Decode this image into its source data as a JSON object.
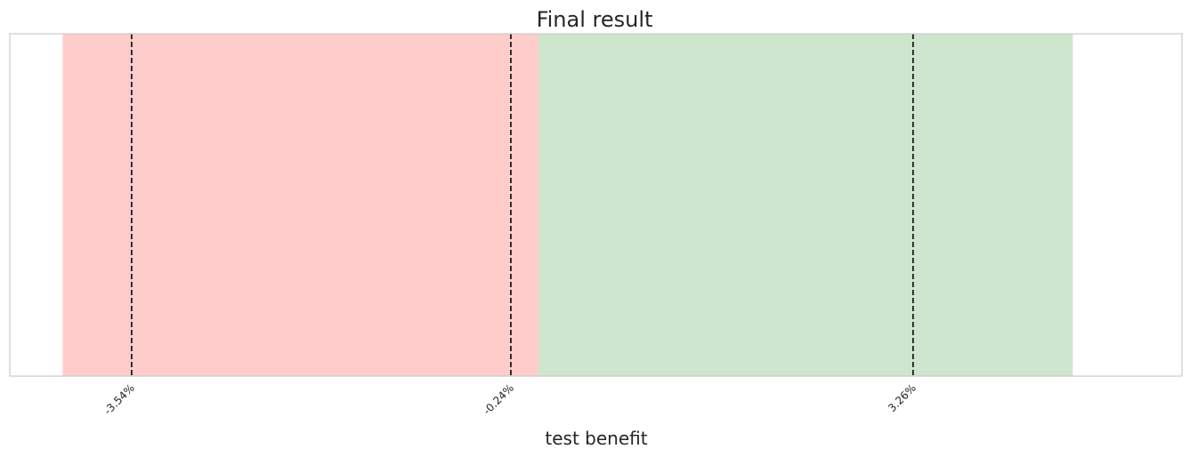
{
  "chart_data": {
    "type": "area",
    "title": "Final result",
    "xlabel": "test benefit",
    "ylabel": "",
    "grid": false,
    "legend": "none",
    "xlim": [
      -4.6,
      5.6
    ],
    "regions": [
      {
        "from": -4.14,
        "to": 0.0,
        "color": "#ff9999",
        "opacity": 0.5
      },
      {
        "from": 0.0,
        "to": 4.65,
        "color": "#9ecb9e",
        "opacity": 0.5
      }
    ],
    "vlines": [
      {
        "x": -3.54,
        "label": "-3.54%"
      },
      {
        "x": -0.24,
        "label": "-0.24%"
      },
      {
        "x": 3.26,
        "label": "3.26%"
      }
    ],
    "colors": {
      "axes_edge": "#cccccc",
      "vline": "#1a1a1a",
      "text": "#262626"
    }
  }
}
